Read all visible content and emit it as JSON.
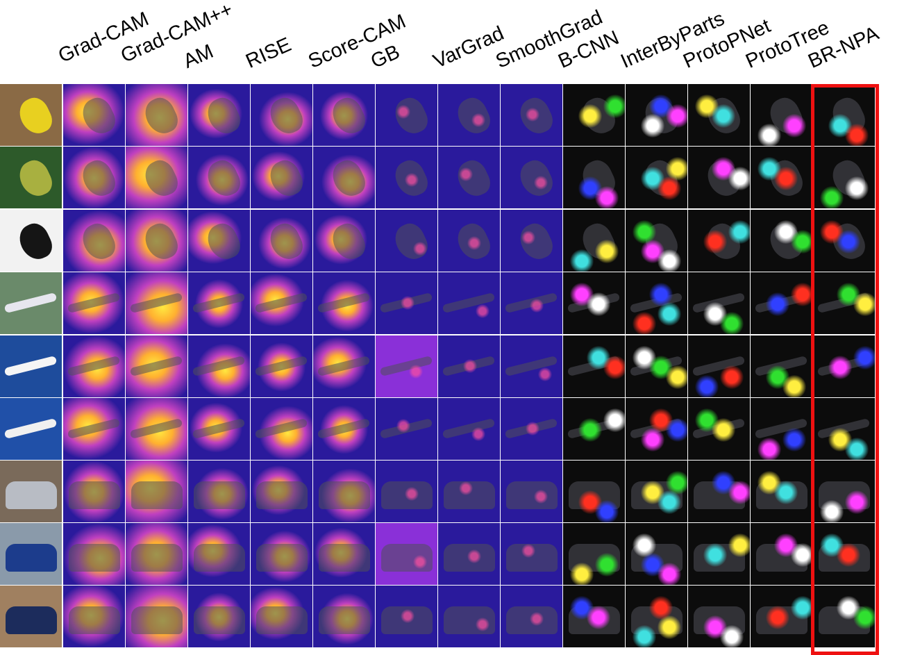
{
  "figure": {
    "column_labels": [
      "Grad-CAM",
      "Grad-CAM++",
      "AM",
      "RISE",
      "Score-CAM",
      "GB",
      "VarGrad",
      "SmoothGrad",
      "B-CNN",
      "InterByParts",
      "ProtoPNet",
      "ProtoTree",
      "BR-NPA"
    ],
    "highlighted_column": "BR-NPA",
    "highlight_color": "#ee1111",
    "rows": [
      {
        "subject": "bird",
        "input_bg": "#8a6a45",
        "subject_color": "#e8d020"
      },
      {
        "subject": "bird",
        "input_bg": "#2d5a2a",
        "subject_color": "#a8b040"
      },
      {
        "subject": "bird",
        "input_bg": "#f2f2f2",
        "subject_color": "#151515"
      },
      {
        "subject": "airplane",
        "input_bg": "#6a8a6a",
        "subject_color": "#e6e6ee"
      },
      {
        "subject": "airplane",
        "input_bg": "#1e4c9c",
        "subject_color": "#f5f5f5"
      },
      {
        "subject": "airplane",
        "input_bg": "#2050a8",
        "subject_color": "#f0f0f0"
      },
      {
        "subject": "car",
        "input_bg": "#7a6a5a",
        "subject_color": "#b8bcc4"
      },
      {
        "subject": "car",
        "input_bg": "#8a9aaa",
        "subject_color": "#1c3c8c"
      },
      {
        "subject": "car",
        "input_bg": "#a08060",
        "subject_color": "#1c2c5c"
      }
    ],
    "colors": {
      "heatmap_low": "#2a1a9c",
      "heatmap_mid": "#c040c0",
      "heatmap_high": "#ffe840",
      "attention_bg": "#0c0c0c"
    }
  }
}
